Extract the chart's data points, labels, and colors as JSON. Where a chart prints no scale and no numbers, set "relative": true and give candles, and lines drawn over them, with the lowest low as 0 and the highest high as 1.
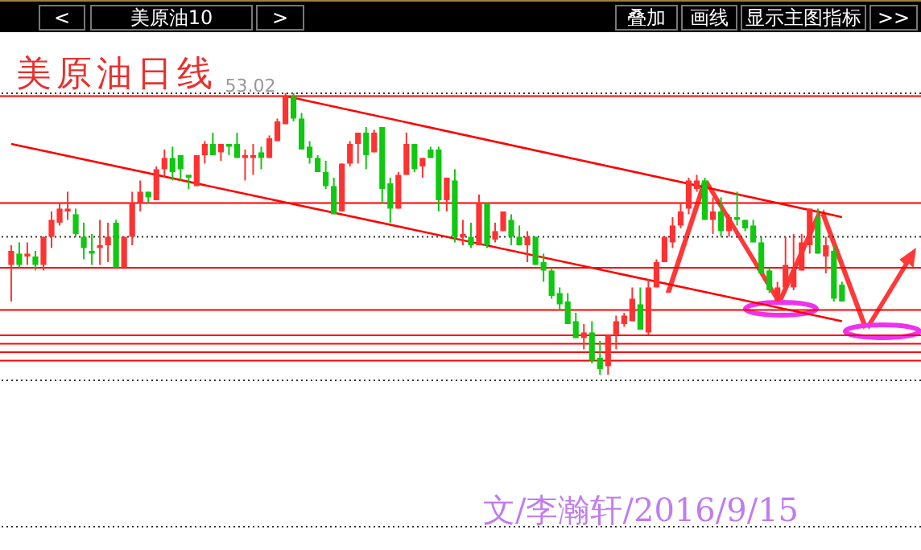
{
  "chart_data": {
    "type": "candlestick",
    "relative": true,
    "title": "美原油日线",
    "annotations": [
      "<",
      "美原油10",
      ">",
      "叠加",
      "画线",
      "显示主图指标",
      ">>",
      "53.02",
      "文/李瀚轩/2016/9/15"
    ],
    "categories": [
      null,
      null,
      null,
      null,
      null,
      null,
      null,
      null,
      null,
      null,
      null,
      null,
      null,
      null,
      null,
      null,
      null,
      null,
      null,
      null,
      null,
      null,
      null,
      null,
      null,
      null,
      null,
      null,
      null,
      null,
      null,
      null,
      null,
      null,
      null,
      null,
      null,
      null,
      null,
      null,
      null,
      null,
      null,
      null,
      null,
      null,
      null,
      null,
      null,
      null,
      null,
      null,
      null,
      null,
      null,
      null,
      null,
      null,
      null,
      null,
      null,
      null,
      null,
      null,
      null,
      null,
      null,
      null,
      null,
      null,
      null,
      null,
      null,
      null,
      null,
      null,
      null,
      null,
      null,
      null,
      null,
      null,
      null,
      null,
      null,
      null,
      null,
      null,
      null,
      null,
      null,
      null,
      null,
      null,
      null,
      null,
      null,
      null,
      null,
      null,
      null,
      null,
      null,
      null
    ],
    "ohlc": [
      [
        0.39,
        0.46,
        0.26,
        0.44
      ],
      [
        0.43,
        0.47,
        0.38,
        0.39
      ],
      [
        0.42,
        0.47,
        0.39,
        0.43
      ],
      [
        0.42,
        0.44,
        0.37,
        0.39
      ],
      [
        0.39,
        0.49,
        0.37,
        0.49
      ],
      [
        0.49,
        0.58,
        0.45,
        0.55
      ],
      [
        0.54,
        0.61,
        0.53,
        0.59
      ],
      [
        0.58,
        0.65,
        0.55,
        0.59
      ],
      [
        0.57,
        0.59,
        0.49,
        0.5
      ],
      [
        0.49,
        0.54,
        0.41,
        0.45
      ],
      [
        0.44,
        0.5,
        0.39,
        0.43
      ],
      [
        0.45,
        0.55,
        0.39,
        0.46
      ],
      [
        0.46,
        0.54,
        0.4,
        0.49
      ],
      [
        0.54,
        0.55,
        0.38,
        0.38
      ],
      [
        0.38,
        0.49,
        0.38,
        0.49
      ],
      [
        0.49,
        0.65,
        0.46,
        0.61
      ],
      [
        0.61,
        0.69,
        0.58,
        0.65
      ],
      [
        0.65,
        0.65,
        0.61,
        0.63
      ],
      [
        0.62,
        0.74,
        0.62,
        0.73
      ],
      [
        0.73,
        0.8,
        0.7,
        0.77
      ],
      [
        0.77,
        0.81,
        0.69,
        0.72
      ],
      [
        0.78,
        0.78,
        0.69,
        0.73
      ],
      [
        0.71,
        0.71,
        0.66,
        0.7
      ],
      [
        0.67,
        0.78,
        0.67,
        0.78
      ],
      [
        0.78,
        0.83,
        0.75,
        0.82
      ],
      [
        0.82,
        0.86,
        0.78,
        0.78
      ],
      [
        0.79,
        0.82,
        0.76,
        0.82
      ],
      [
        0.82,
        0.82,
        0.78,
        0.81
      ],
      [
        0.82,
        0.86,
        0.77,
        0.77
      ],
      [
        0.77,
        0.8,
        0.69,
        0.78
      ],
      [
        0.77,
        0.82,
        0.71,
        0.78
      ],
      [
        0.79,
        0.81,
        0.73,
        0.77
      ],
      [
        0.77,
        0.85,
        0.77,
        0.84
      ],
      [
        0.83,
        0.91,
        0.83,
        0.9
      ],
      [
        0.89,
        1,
        0.89,
        0.99
      ],
      [
        0.99,
        1,
        0.9,
        0.91
      ],
      [
        0.91,
        0.93,
        0.8,
        0.8
      ],
      [
        0.81,
        0.83,
        0.75,
        0.77
      ],
      [
        0.77,
        0.78,
        0.72,
        0.72
      ],
      [
        0.72,
        0.76,
        0.66,
        0.67
      ],
      [
        0.67,
        0.7,
        0.57,
        0.57
      ],
      [
        0.58,
        0.75,
        0.58,
        0.75
      ],
      [
        0.75,
        0.83,
        0.74,
        0.82
      ],
      [
        0.82,
        0.86,
        0.75,
        0.86
      ],
      [
        0.86,
        0.88,
        0.73,
        0.78
      ],
      [
        0.79,
        0.87,
        0.79,
        0.86
      ],
      [
        0.88,
        0.88,
        0.61,
        0.66
      ],
      [
        0.68,
        0.7,
        0.54,
        0.59
      ],
      [
        0.59,
        0.72,
        0.59,
        0.71
      ],
      [
        0.71,
        0.86,
        0.71,
        0.82
      ],
      [
        0.82,
        0.82,
        0.72,
        0.73
      ],
      [
        0.74,
        0.77,
        0.7,
        0.77
      ],
      [
        0.8,
        0.81,
        0.77,
        0.77
      ],
      [
        0.8,
        0.81,
        0.58,
        0.62
      ],
      [
        0.62,
        0.7,
        0.58,
        0.7
      ],
      [
        0.69,
        0.73,
        0.47,
        0.49
      ],
      [
        0.49,
        0.55,
        0.46,
        0.5
      ],
      [
        0.49,
        0.54,
        0.45,
        0.46
      ],
      [
        0.46,
        0.64,
        0.46,
        0.61
      ],
      [
        0.61,
        0.61,
        0.45,
        0.46
      ],
      [
        0.48,
        0.54,
        0.47,
        0.51
      ],
      [
        0.51,
        0.58,
        0.51,
        0.58
      ],
      [
        0.55,
        0.57,
        0.46,
        0.49
      ],
      [
        0.49,
        0.53,
        0.46,
        0.46
      ],
      [
        0.46,
        0.51,
        0.4,
        0.49
      ],
      [
        0.49,
        0.49,
        0.39,
        0.39
      ],
      [
        0.4,
        0.43,
        0.33,
        0.37
      ],
      [
        0.37,
        0.38,
        0.27,
        0.28
      ],
      [
        0.29,
        0.31,
        0.23,
        0.25
      ],
      [
        0.26,
        0.29,
        0.18,
        0.18
      ],
      [
        0.19,
        0.22,
        0.13,
        0.13
      ],
      [
        0.13,
        0.18,
        0.09,
        0.15
      ],
      [
        0.15,
        0.19,
        0.04,
        0.05
      ],
      [
        0.06,
        0.12,
        0,
        0.02
      ],
      [
        0.03,
        0.14,
        0,
        0.14
      ],
      [
        0.14,
        0.21,
        0.09,
        0.19
      ],
      [
        0.18,
        0.22,
        0.17,
        0.21
      ],
      [
        0.19,
        0.31,
        0.19,
        0.27
      ],
      [
        0.25,
        0.31,
        0.16,
        0.16
      ],
      [
        0.15,
        0.34,
        0.14,
        0.31
      ],
      [
        0.31,
        0.41,
        0.31,
        0.4
      ],
      [
        0.4,
        0.49,
        0.4,
        0.49
      ],
      [
        0.47,
        0.56,
        0.45,
        0.53
      ],
      [
        0.53,
        0.61,
        0.52,
        0.58
      ],
      [
        0.59,
        0.7,
        0.57,
        0.69
      ],
      [
        0.66,
        0.71,
        0.65,
        0.69
      ],
      [
        0.69,
        0.7,
        0.55,
        0.55
      ],
      [
        0.55,
        0.63,
        0.5,
        0.58
      ],
      [
        0.58,
        0.63,
        0.49,
        0.51
      ],
      [
        0.51,
        0.57,
        0.49,
        0.56
      ],
      [
        0.56,
        0.65,
        0.53,
        0.55
      ],
      [
        0.55,
        0.55,
        0.51,
        0.52
      ],
      [
        0.53,
        0.55,
        0.47,
        0.47
      ],
      [
        0.47,
        0.49,
        0.36,
        0.36
      ],
      [
        0.37,
        0.38,
        0.29,
        0.3
      ],
      [
        0.26,
        0.33,
        0.26,
        0.31
      ],
      [
        0.31,
        0.49,
        0.29,
        0.39
      ],
      [
        0.31,
        0.5,
        0.3,
        0.37
      ],
      [
        0.37,
        0.5,
        0.37,
        0.47
      ],
      [
        0.46,
        0.59,
        0.43,
        0.59
      ],
      [
        0.56,
        0.59,
        0.43,
        0.43
      ],
      [
        0.42,
        0.49,
        0.36,
        0.46
      ],
      [
        0.44,
        0.46,
        0.26,
        0.27
      ],
      [
        0.32,
        0.33,
        0.26,
        0.26
      ]
    ],
    "colors": [
      "#ff3232",
      "#10c810",
      "#ff3232",
      "#10c810",
      "#ff3232",
      "#ff3232",
      "#ff3232",
      "#ff3232",
      "#10c810",
      "#10c810",
      "#10c810",
      "#ff3232",
      "#ff3232",
      "#10c810",
      "#ff3232",
      "#ff3232",
      "#ff3232",
      "#10c810",
      "#ff3232",
      "#ff3232",
      "#10c810",
      "#10c810",
      "#10c810",
      "#ff3232",
      "#ff3232",
      "#10c810",
      "#ff3232",
      "#10c810",
      "#10c810",
      "#ff3232",
      "#ff3232",
      "#10c810",
      "#ff3232",
      "#ff3232",
      "#ff3232",
      "#10c810",
      "#10c810",
      "#10c810",
      "#10c810",
      "#10c810",
      "#10c810",
      "#ff3232",
      "#ff3232",
      "#ff3232",
      "#10c810",
      "#ff3232",
      "#10c810",
      "#10c810",
      "#ff3232",
      "#ff3232",
      "#10c810",
      "#ff3232",
      "#10c810",
      "#10c810",
      "#ff3232",
      "#10c810",
      "#ff3232",
      "#10c810",
      "#ff3232",
      "#10c810",
      "#ff3232",
      "#ff3232",
      "#10c810",
      "#10c810",
      "#ff3232",
      "#10c810",
      "#10c810",
      "#10c810",
      "#10c810",
      "#10c810",
      "#10c810",
      "#ff3232",
      "#10c810",
      "#10c810",
      "#ff3232",
      "#ff3232",
      "#ff3232",
      "#ff3232",
      "#10c810",
      "#ff3232",
      "#ff3232",
      "#ff3232",
      "#ff3232",
      "#ff3232",
      "#ff3232",
      "#ff3232",
      "#10c810",
      "#ff3232",
      "#10c810",
      "#ff3232",
      "#10c810",
      "#10c810",
      "#10c810",
      "#10c810",
      "#10c810",
      "#ff3232",
      "#ff3232",
      "#ff3232",
      "#ff3232",
      "#ff3232",
      "#10c810",
      "#ff3232",
      "#10c810",
      "#10c810"
    ],
    "series": [
      {
        "type": "line",
        "color": "#ff0000",
        "values": [
          0.82,
          null,
          null,
          null,
          null,
          null,
          null,
          null,
          null,
          null,
          null,
          null,
          null,
          null,
          null,
          null,
          null,
          null,
          null,
          null,
          null,
          null,
          null,
          null,
          null,
          null,
          null,
          null,
          null,
          null,
          null,
          null,
          null,
          null,
          null,
          null,
          null,
          null,
          null,
          null,
          null,
          null,
          null,
          null,
          null,
          null,
          null,
          null,
          null,
          null,
          null,
          null,
          null,
          null,
          null,
          null,
          null,
          null,
          null,
          null,
          null,
          null,
          null,
          null,
          null,
          null,
          null,
          null,
          null,
          null,
          null,
          null,
          null,
          null,
          null,
          null,
          null,
          null,
          null,
          null,
          null,
          null,
          null,
          null,
          null,
          null,
          null,
          null,
          null,
          null,
          null,
          null,
          null,
          null,
          null,
          null,
          null,
          null,
          null,
          null,
          null,
          null,
          null,
          0.19
        ]
      },
      {
        "type": "line",
        "color": "#ff0000",
        "values": [
          null,
          null,
          null,
          null,
          null,
          null,
          null,
          null,
          null,
          null,
          null,
          null,
          null,
          null,
          null,
          null,
          null,
          null,
          null,
          null,
          null,
          null,
          null,
          null,
          null,
          null,
          null,
          null,
          null,
          null,
          null,
          null,
          null,
          null,
          0.99,
          null,
          null,
          null,
          null,
          null,
          null,
          null,
          null,
          null,
          null,
          null,
          null,
          null,
          null,
          null,
          null,
          null,
          null,
          null,
          null,
          null,
          null,
          null,
          null,
          null,
          null,
          null,
          null,
          null,
          null,
          null,
          null,
          null,
          null,
          null,
          null,
          null,
          null,
          null,
          null,
          null,
          null,
          null,
          null,
          null,
          null,
          null,
          null,
          null,
          null,
          null,
          null,
          null,
          null,
          null,
          null,
          null,
          null,
          null,
          null,
          null,
          null,
          null,
          null,
          null,
          null,
          null,
          null,
          0.56
        ]
      }
    ],
    "ref_lines": [
      {
        "axis": "y",
        "value": 0.99,
        "color": "#ff0000",
        "line_style": "solid"
      },
      {
        "axis": "y",
        "value": 0.61,
        "color": "#ff0000",
        "line_style": "solid"
      },
      {
        "axis": "y",
        "value": 0.38,
        "color": "#ff0000",
        "line_style": "solid"
      },
      {
        "axis": "y",
        "value": 0.23,
        "color": "#ff0000",
        "line_style": "solid"
      },
      {
        "axis": "y",
        "value": 0.14,
        "color": "#ff0000",
        "line_style": "solid"
      },
      {
        "axis": "y",
        "value": 0.11,
        "color": "#ff0000",
        "line_style": "solid"
      },
      {
        "axis": "y",
        "value": 0.08,
        "color": "#ff0000",
        "line_style": "solid"
      },
      {
        "axis": "y",
        "value": 0.05,
        "color": "#ff0000",
        "line_style": "solid"
      },
      {
        "axis": "y",
        "value": 1.0,
        "color": "#333333",
        "line_style": "dotted"
      },
      {
        "axis": "y",
        "value": 0.49,
        "color": "#333333",
        "line_style": "dotted"
      },
      {
        "axis": "y",
        "value": -0.02,
        "color": "#333333",
        "line_style": "dotted"
      },
      {
        "axis": "y",
        "value": -0.54,
        "color": "#333333",
        "line_style": "dotted"
      }
    ]
  }
}
